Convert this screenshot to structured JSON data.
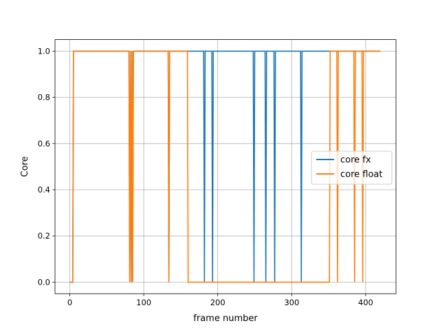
{
  "chart_data": {
    "type": "line",
    "title": "",
    "xlabel": "frame number",
    "ylabel": "Core",
    "xlim": [
      -20,
      441
    ],
    "ylim": [
      -0.05,
      1.05
    ],
    "xticks": [
      0,
      100,
      200,
      300,
      400
    ],
    "yticks": [
      0.0,
      0.2,
      0.4,
      0.6,
      0.8,
      1.0
    ],
    "xtick_labels": [
      "0",
      "100",
      "200",
      "300",
      "400"
    ],
    "ytick_labels": [
      "0.0",
      "0.2",
      "0.4",
      "0.6",
      "0.8",
      "1.0"
    ],
    "grid": true,
    "legend": {
      "position": "center-right"
    },
    "series": [
      {
        "name": "core fx",
        "color": "#1f77b4",
        "x": [
          0,
          4,
          5,
          80,
          81,
          82,
          83,
          84,
          85,
          86,
          133,
          134,
          135,
          181,
          182,
          183,
          192,
          193,
          194,
          248,
          249,
          250,
          264,
          265,
          266,
          276,
          277,
          278,
          312,
          313,
          314,
          420
        ],
        "y": [
          0,
          0,
          1,
          1,
          0,
          1,
          0,
          1,
          0,
          1,
          1,
          0,
          1,
          1,
          0,
          1,
          1,
          0,
          1,
          1,
          0,
          1,
          1,
          0,
          1,
          1,
          0,
          1,
          1,
          0,
          1,
          1
        ]
      },
      {
        "name": "core float",
        "color": "#ff7f0e",
        "x": [
          0,
          4,
          5,
          80,
          81,
          82,
          83,
          84,
          85,
          86,
          133,
          134,
          135,
          159,
          160,
          351,
          352,
          361,
          362,
          363,
          384,
          385,
          386,
          395,
          396,
          397,
          420
        ],
        "y": [
          0,
          0,
          1,
          1,
          0,
          1,
          0,
          1,
          0,
          1,
          1,
          0,
          1,
          1,
          0,
          0,
          1,
          1,
          0,
          1,
          1,
          0,
          1,
          1,
          0,
          1,
          1
        ]
      }
    ]
  }
}
